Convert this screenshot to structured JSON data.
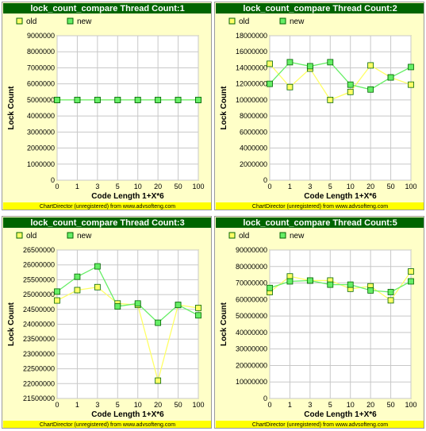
{
  "chart_data": [
    {
      "type": "line",
      "title": "lock_count_compare Thread Count:1",
      "categories": [
        "0",
        "1",
        "3",
        "5",
        "10",
        "20",
        "50",
        "100"
      ],
      "series": [
        {
          "name": "old",
          "color": "#ffff66",
          "values": [
            5000000,
            5000000,
            5000000,
            5000000,
            5000000,
            5000000,
            5000000,
            5000000
          ]
        },
        {
          "name": "new",
          "color": "#66ee66",
          "values": [
            5000000,
            5000000,
            5000000,
            5000000,
            5000000,
            5000000,
            5000000,
            5000000
          ]
        }
      ],
      "xlabel": "Code Length 1+X*6",
      "ylabel": "Lock Count",
      "ylim": [
        0,
        9000000
      ],
      "yticks": [
        "0",
        "1000000",
        "2000000",
        "3000000",
        "4000000",
        "5000000",
        "6000000",
        "7000000",
        "8000000",
        "9000000"
      ],
      "grid": true,
      "legend_position": "top-left",
      "footer": "ChartDirector (unregistered) from www.advsofteng.com"
    },
    {
      "type": "line",
      "title": "lock_count_compare Thread Count:2",
      "categories": [
        "0",
        "1",
        "3",
        "5",
        "10",
        "20",
        "50",
        "100"
      ],
      "series": [
        {
          "name": "old",
          "color": "#ffff66",
          "values": [
            14500000,
            11600000,
            13900000,
            10000000,
            11000000,
            14300000,
            12800000,
            11900000
          ]
        },
        {
          "name": "new",
          "color": "#66ee66",
          "values": [
            12000000,
            14700000,
            14200000,
            14700000,
            11900000,
            11300000,
            12800000,
            14100000
          ]
        }
      ],
      "xlabel": "Code Length 1+X*6",
      "ylabel": "Lock Count",
      "ylim": [
        0,
        18000000
      ],
      "yticks": [
        "0",
        "2000000",
        "4000000",
        "6000000",
        "8000000",
        "10000000",
        "12000000",
        "14000000",
        "16000000",
        "18000000"
      ],
      "grid": true,
      "legend_position": "top-left",
      "footer": "ChartDirector (unregistered) from www.advsofteng.com"
    },
    {
      "type": "line",
      "title": "lock_count_compare Thread Count:3",
      "categories": [
        "0",
        "1",
        "3",
        "5",
        "10",
        "20",
        "50",
        "100"
      ],
      "series": [
        {
          "name": "old",
          "color": "#ffff66",
          "values": [
            24800000,
            25150000,
            25250000,
            24700000,
            24650000,
            22100000,
            24650000,
            24550000
          ]
        },
        {
          "name": "new",
          "color": "#66ee66",
          "values": [
            25100000,
            25600000,
            25950000,
            24600000,
            24700000,
            24050000,
            24650000,
            24300000
          ]
        }
      ],
      "xlabel": "Code Length 1+X*6",
      "ylabel": "Lock Count",
      "ylim": [
        21500000,
        26500000
      ],
      "yticks": [
        "21500000",
        "22000000",
        "22500000",
        "23000000",
        "23500000",
        "24000000",
        "24500000",
        "25000000",
        "25500000",
        "26000000",
        "26500000"
      ],
      "grid": true,
      "legend_position": "top-left",
      "footer": "ChartDirector (unregistered) from www.advsofteng.com"
    },
    {
      "type": "line",
      "title": "lock_count_compare Thread Count:5",
      "categories": [
        "0",
        "1",
        "3",
        "5",
        "10",
        "20",
        "50",
        "100"
      ],
      "series": [
        {
          "name": "old",
          "color": "#ffff66",
          "values": [
            64500000,
            74000000,
            71500000,
            71500000,
            66500000,
            68000000,
            59500000,
            77000000
          ]
        },
        {
          "name": "new",
          "color": "#66ee66",
          "values": [
            67000000,
            71000000,
            71500000,
            69000000,
            69000000,
            65500000,
            64500000,
            71000000
          ]
        }
      ],
      "xlabel": "Code Length 1+X*6",
      "ylabel": "Lock Count",
      "ylim": [
        0,
        90000000
      ],
      "yticks": [
        "0",
        "10000000",
        "20000000",
        "30000000",
        "40000000",
        "50000000",
        "60000000",
        "70000000",
        "80000000",
        "90000000"
      ],
      "grid": true,
      "legend_position": "top-left",
      "footer": "ChartDirector (unregistered) from www.advsofteng.com"
    }
  ],
  "colors": {
    "title_bar": "#006400",
    "background": "#ffffc8",
    "plot_area": "#ffffff",
    "grid": "#c8c8c8",
    "footer_bar": "#ffff00",
    "marker_border": "#006600"
  }
}
